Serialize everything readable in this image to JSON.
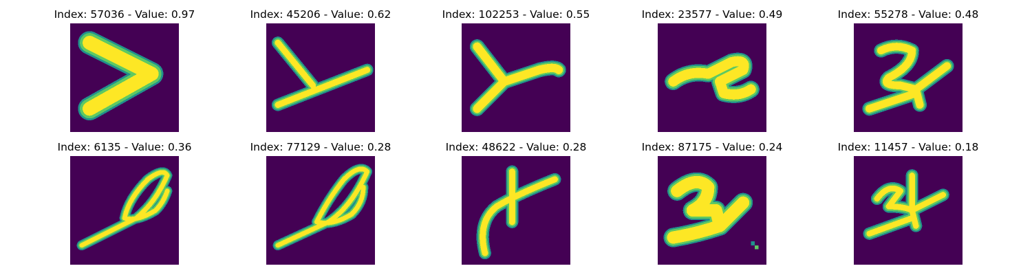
{
  "colors": {
    "background": "#440154",
    "stroke_core": "#fde725",
    "stroke_mid": "#5ec962",
    "stroke_edge": "#21918c"
  },
  "panels": [
    {
      "title": "Index: 57036 - Value: 0.97",
      "glyph": "chevron"
    },
    {
      "title": "Index: 45206 - Value: 0.62",
      "glyph": "y-slant"
    },
    {
      "title": "Index: 102253 - Value: 0.55",
      "glyph": "y-curl"
    },
    {
      "title": "Index: 23577 - Value: 0.49",
      "glyph": "zigzag"
    },
    {
      "title": "Index: 55278 - Value: 0.48",
      "glyph": "two-loop"
    },
    {
      "title": "Index: 6135 - Value: 0.36",
      "glyph": "loop-a"
    },
    {
      "title": "Index: 77129 - Value: 0.28",
      "glyph": "loop-b"
    },
    {
      "title": "Index: 48622 - Value: 0.28",
      "glyph": "cross-curve"
    },
    {
      "title": "Index: 87175 - Value: 0.24",
      "glyph": "bold-two"
    },
    {
      "title": "Index: 11457 - Value: 0.18",
      "glyph": "thin-two"
    }
  ]
}
